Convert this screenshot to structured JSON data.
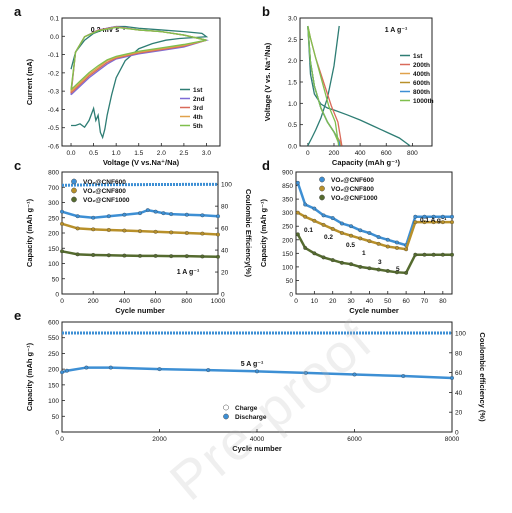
{
  "colors": {
    "teal": "#3f8f8a",
    "blue": "#7d6bd6",
    "red": "#d96a5a",
    "orange": "#e0a24b",
    "green": "#7fbf4d",
    "sky": "#3d8fd4",
    "gold": "#b8902a",
    "olive": "#556b2f",
    "gray_teal": "#2e7d74"
  },
  "panel_labels": [
    "a",
    "b",
    "c",
    "d",
    "e"
  ],
  "watermark": "Pre-proof",
  "chart_data": [
    {
      "id": "a",
      "type": "line",
      "annotation": "0.2 mV s⁻¹",
      "xlabel": "Voltage (V vs.Na⁺/Na)",
      "ylabel": "Current (mA)",
      "xlim": [
        -0.2,
        3.3
      ],
      "ylim": [
        -0.6,
        0.15
      ],
      "xticks": [
        "0.0",
        "0.5",
        "1.0",
        "1.5",
        "2.0",
        "2.5",
        "3.0"
      ],
      "yticks": [
        "-0.6",
        "-0.5",
        "-0.4",
        "-0.3",
        "-0.2",
        "-0.1",
        "0.0",
        "0.1"
      ],
      "legend": [
        "1st",
        "2nd",
        "3rd",
        "4th",
        "5th"
      ],
      "legend_position": "bottom-right",
      "series": [
        {
          "name": "1st",
          "x": [
            0.0,
            0.1,
            0.2,
            0.3,
            0.4,
            0.5,
            0.55,
            0.6,
            0.65,
            0.7,
            0.75,
            0.8,
            0.9,
            1.0,
            1.2,
            1.5,
            1.8,
            2.1,
            2.4,
            2.7,
            3.0,
            2.9,
            2.5,
            2.0,
            1.5,
            1.2,
            1.0,
            0.8,
            0.5,
            0.3,
            0.1,
            0.0
          ],
          "y": [
            -0.48,
            -0.48,
            -0.47,
            -0.49,
            -0.45,
            -0.38,
            -0.45,
            -0.42,
            -0.52,
            -0.55,
            -0.5,
            -0.42,
            -0.3,
            -0.2,
            -0.1,
            -0.03,
            0.0,
            0.02,
            0.03,
            0.035,
            0.04,
            0.06,
            0.07,
            0.08,
            0.09,
            0.1,
            0.1,
            0.09,
            0.06,
            0.02,
            -0.05,
            -0.15
          ]
        },
        {
          "name": "2nd",
          "x": [
            0.0,
            0.2,
            0.4,
            0.6,
            0.8,
            1.0,
            1.5,
            2.0,
            2.5,
            3.0,
            2.5,
            2.0,
            1.5,
            1.0,
            0.6,
            0.3,
            0.1,
            0.0
          ],
          "y": [
            -0.3,
            -0.25,
            -0.2,
            -0.16,
            -0.12,
            -0.09,
            -0.06,
            -0.04,
            -0.02,
            0.02,
            0.05,
            0.07,
            0.08,
            0.1,
            0.08,
            0.04,
            -0.05,
            -0.3
          ]
        },
        {
          "name": "3rd",
          "x": [
            0.0,
            0.2,
            0.4,
            0.6,
            0.8,
            1.0,
            1.5,
            2.0,
            2.5,
            3.0,
            2.5,
            2.0,
            1.5,
            1.0,
            0.6,
            0.3,
            0.1,
            0.0
          ],
          "y": [
            -0.29,
            -0.24,
            -0.19,
            -0.15,
            -0.11,
            -0.085,
            -0.055,
            -0.035,
            -0.015,
            0.02,
            0.05,
            0.07,
            0.08,
            0.098,
            0.078,
            0.04,
            -0.05,
            -0.29
          ]
        },
        {
          "name": "4th",
          "x": [
            0.0,
            0.2,
            0.4,
            0.6,
            0.8,
            1.0,
            1.5,
            2.0,
            2.5,
            3.0,
            2.5,
            2.0,
            1.5,
            1.0,
            0.6,
            0.3,
            0.1,
            0.0
          ],
          "y": [
            -0.28,
            -0.23,
            -0.18,
            -0.14,
            -0.1,
            -0.08,
            -0.05,
            -0.03,
            -0.01,
            0.02,
            0.05,
            0.07,
            0.08,
            0.096,
            0.076,
            0.04,
            -0.05,
            -0.28
          ]
        },
        {
          "name": "5th",
          "x": [
            0.0,
            0.2,
            0.4,
            0.6,
            0.8,
            1.0,
            1.5,
            2.0,
            2.5,
            3.0,
            2.5,
            2.0,
            1.5,
            1.0,
            0.6,
            0.3,
            0.1,
            0.0
          ],
          "y": [
            -0.27,
            -0.22,
            -0.17,
            -0.13,
            -0.095,
            -0.075,
            -0.045,
            -0.025,
            -0.005,
            0.02,
            0.05,
            0.07,
            0.08,
            0.095,
            0.075,
            0.04,
            -0.05,
            -0.27
          ]
        }
      ]
    },
    {
      "id": "b",
      "type": "line",
      "annotation": "1 A g⁻¹",
      "xlabel": "Capacity (mAh g⁻¹)",
      "ylabel": "Voltage (V vs. Na⁺/Na)",
      "xlim": [
        -60,
        950
      ],
      "ylim": [
        0,
        3.2
      ],
      "xticks": [
        "0",
        "200",
        "400",
        "600",
        "800"
      ],
      "yticks": [
        "0.0",
        "0.5",
        "1.0",
        "1.5",
        "2.0",
        "2.5",
        "3.0"
      ],
      "legend": [
        "1st",
        "200th",
        "400th",
        "600th",
        "800th",
        "1000th"
      ],
      "legend_position": "right",
      "series": [
        {
          "name": "1st",
          "x": [
            0,
            20,
            50,
            100,
            150,
            200,
            300,
            400,
            500,
            600,
            700,
            780
          ],
          "y": [
            3.0,
            1.8,
            1.3,
            1.05,
            0.95,
            0.9,
            0.78,
            0.65,
            0.5,
            0.35,
            0.2,
            0.01
          ]
        },
        {
          "name": "1st_charge",
          "x": [
            0,
            30,
            60,
            100,
            150,
            200,
            240
          ],
          "y": [
            0.01,
            0.2,
            0.4,
            0.7,
            1.2,
            2.0,
            3.0
          ]
        },
        {
          "name": "200th",
          "x": [
            0,
            20,
            50,
            100,
            150,
            200,
            250,
            260,
            230,
            180,
            120,
            60,
            20,
            0
          ],
          "y": [
            3.0,
            2.1,
            1.5,
            0.95,
            0.6,
            0.35,
            0.1,
            0.01,
            0.6,
            1.0,
            1.6,
            2.2,
            2.7,
            3.0
          ]
        },
        {
          "name": "400th",
          "x": [
            0,
            20,
            50,
            100,
            150,
            200,
            245,
            250
          ],
          "y": [
            3.0,
            2.1,
            1.5,
            0.95,
            0.6,
            0.35,
            0.1,
            0.01
          ]
        },
        {
          "name": "600th",
          "x": [
            0,
            20,
            50,
            100,
            150,
            200,
            240,
            245
          ],
          "y": [
            3.0,
            2.1,
            1.5,
            0.95,
            0.6,
            0.35,
            0.1,
            0.01
          ]
        },
        {
          "name": "800th",
          "x": [
            0,
            20,
            50,
            100,
            150,
            200,
            236,
            240
          ],
          "y": [
            3.0,
            2.1,
            1.5,
            0.95,
            0.6,
            0.35,
            0.1,
            0.01
          ]
        },
        {
          "name": "1000th",
          "x": [
            0,
            20,
            50,
            100,
            150,
            200,
            232,
            236,
            210,
            160,
            110,
            60,
            20,
            0
          ],
          "y": [
            3.0,
            2.1,
            1.5,
            0.95,
            0.6,
            0.35,
            0.1,
            0.01,
            0.6,
            1.0,
            1.6,
            2.2,
            2.7,
            3.0
          ]
        }
      ]
    },
    {
      "id": "c",
      "type": "scatter",
      "annotation": "1 A g⁻¹",
      "xlabel": "Cycle number",
      "ylabel": "Capacity (mAh g⁻¹)",
      "ylabel_right": "Coulombic Efficiency(%)",
      "xlim": [
        0,
        1000
      ],
      "ylim": [
        0,
        750
      ],
      "xticks": [
        "0",
        "200",
        "400",
        "600",
        "800",
        "1000"
      ],
      "yticks": [
        "0",
        "50",
        "100",
        "150",
        "200",
        "250",
        "300",
        "700",
        "800"
      ],
      "yticks_right": [
        "0",
        "20",
        "40",
        "60",
        "80",
        "100"
      ],
      "legend": [
        "VO₂@CNF600",
        "VO₂@CNF800",
        "VO₂@CNF1000"
      ],
      "legend_position": "top-left",
      "series": [
        {
          "name": "VO₂@CNF600",
          "x": [
            0,
            100,
            200,
            300,
            400,
            500,
            550,
            600,
            650,
            700,
            800,
            900,
            1000
          ],
          "y": [
            270,
            255,
            250,
            255,
            260,
            265,
            275,
            270,
            265,
            262,
            260,
            258,
            255
          ]
        },
        {
          "name": "VO₂@CNF800",
          "x": [
            0,
            100,
            200,
            300,
            400,
            500,
            600,
            700,
            800,
            900,
            1000
          ],
          "y": [
            230,
            215,
            212,
            210,
            208,
            206,
            204,
            202,
            200,
            198,
            195
          ]
        },
        {
          "name": "VO₂@CNF1000",
          "x": [
            0,
            100,
            200,
            300,
            400,
            500,
            600,
            700,
            800,
            900,
            1000
          ],
          "y": [
            140,
            130,
            128,
            127,
            126,
            125,
            125,
            124,
            124,
            123,
            122
          ]
        },
        {
          "name": "CE",
          "x": [
            0,
            200,
            400,
            600,
            800,
            1000
          ],
          "y": [
            99,
            99.5,
            99.6,
            99.7,
            99.8,
            99.8
          ]
        }
      ]
    },
    {
      "id": "d",
      "type": "scatter",
      "xlabel": "Cycle number",
      "ylabel": "Capacity (mAh g⁻¹)",
      "xlim": [
        0,
        85
      ],
      "ylim": [
        0,
        900
      ],
      "xticks": [
        "0",
        "10",
        "20",
        "30",
        "40",
        "50",
        "60",
        "70",
        "80"
      ],
      "yticks": [
        "0",
        "50",
        "100",
        "150",
        "200",
        "250",
        "300",
        "350",
        "850",
        "900"
      ],
      "legend": [
        "VO₂@CNF600",
        "VO₂@CNF800",
        "VO₂@CNF1000"
      ],
      "legend_position": "top-center",
      "rate_labels": [
        "0.1",
        "0.2",
        "0.5",
        "1",
        "3",
        "5",
        "0.1  A g⁻¹"
      ],
      "series": [
        {
          "name": "VO₂@CNF600",
          "x": [
            1,
            5,
            10,
            15,
            20,
            25,
            30,
            35,
            40,
            45,
            50,
            55,
            60,
            65,
            70,
            75,
            80,
            85
          ],
          "y": [
            860,
            330,
            315,
            290,
            280,
            260,
            250,
            235,
            225,
            210,
            200,
            190,
            180,
            285,
            285,
            285,
            285,
            285
          ]
        },
        {
          "name": "VO₂@CNF800",
          "x": [
            1,
            5,
            10,
            15,
            20,
            25,
            30,
            35,
            40,
            45,
            50,
            55,
            60,
            65,
            70,
            75,
            80,
            85
          ],
          "y": [
            300,
            285,
            270,
            255,
            240,
            225,
            215,
            205,
            195,
            185,
            175,
            170,
            165,
            265,
            265,
            265,
            265,
            265
          ]
        },
        {
          "name": "VO₂@CNF1000",
          "x": [
            1,
            5,
            10,
            15,
            20,
            25,
            30,
            35,
            40,
            45,
            50,
            55,
            60,
            65,
            70,
            75,
            80,
            85
          ],
          "y": [
            220,
            170,
            150,
            135,
            125,
            115,
            110,
            100,
            95,
            90,
            85,
            80,
            78,
            145,
            145,
            145,
            145,
            145
          ]
        }
      ]
    },
    {
      "id": "e",
      "type": "scatter",
      "annotation": "5 A g⁻¹",
      "xlabel": "Cycle number",
      "ylabel": "Capacity (mAh g⁻¹)",
      "ylabel_right": "Coulombic efficiency (%)",
      "xlim": [
        0,
        8000
      ],
      "ylim": [
        0,
        600
      ],
      "xticks": [
        "0",
        "2000",
        "4000",
        "6000",
        "8000"
      ],
      "yticks": [
        "0",
        "50",
        "100",
        "150",
        "200",
        "250",
        "550",
        "600"
      ],
      "yticks_right": [
        "0",
        "20",
        "40",
        "60",
        "80",
        "100"
      ],
      "legend": [
        "Charge",
        "Discharge"
      ],
      "legend_position": "bottom-center",
      "series": [
        {
          "name": "Discharge",
          "x": [
            0,
            100,
            500,
            1000,
            2000,
            3000,
            4000,
            5000,
            6000,
            7000,
            8000
          ],
          "y": [
            190,
            195,
            205,
            205,
            200,
            197,
            193,
            188,
            183,
            178,
            172
          ]
        },
        {
          "name": "CE",
          "x": [
            0,
            2000,
            4000,
            6000,
            8000
          ],
          "y": [
            100,
            100,
            100,
            100,
            100
          ]
        }
      ]
    }
  ]
}
